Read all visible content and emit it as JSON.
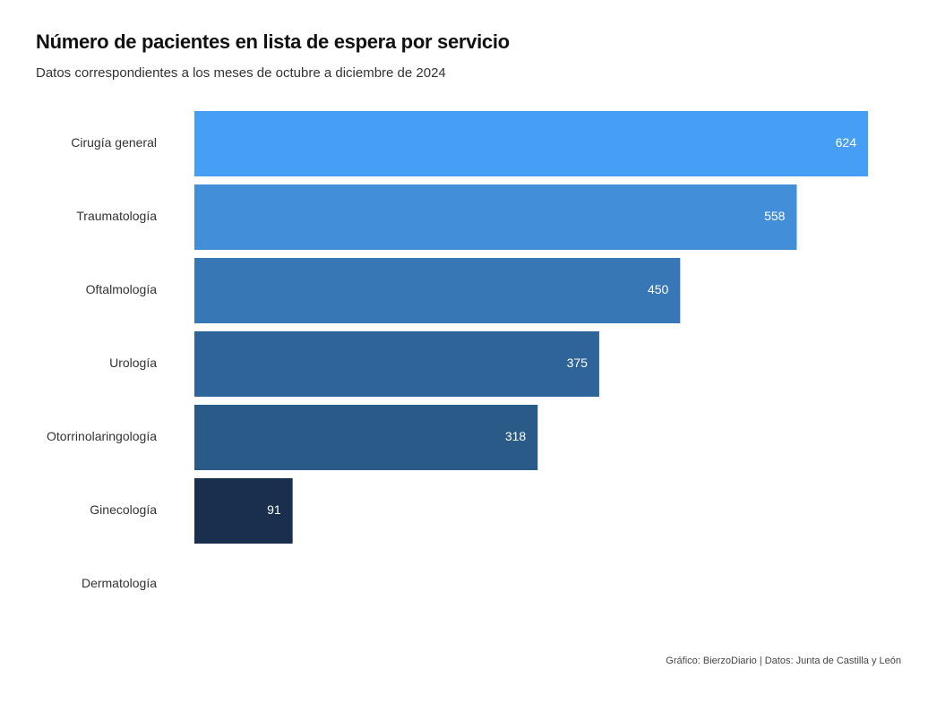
{
  "chart_data": {
    "type": "bar",
    "orientation": "horizontal",
    "title": "Número de pacientes en lista de espera por servicio",
    "subtitle": "Datos correspondientes a los meses de octubre a diciembre de 2024",
    "caption": "Gráfico: BierzoDiario | Datos: Junta de Castilla y León",
    "categories": [
      "Cirugía general",
      "Traumatología",
      "Oftalmología",
      "Urología",
      "Otorrinolaringología",
      "Ginecología",
      "Dermatología"
    ],
    "values": [
      624,
      558,
      450,
      375,
      318,
      91,
      0
    ],
    "value_labels": [
      "624",
      "558",
      "450",
      "375",
      "318",
      "91",
      ""
    ],
    "colors": [
      "#469ff5",
      "#428ed9",
      "#3777b5",
      "#2e6499",
      "#2a5a87",
      "#1a2e4d",
      "#1a2e4d"
    ],
    "xlim": [
      0,
      624
    ],
    "grid": false,
    "legend": "none"
  }
}
